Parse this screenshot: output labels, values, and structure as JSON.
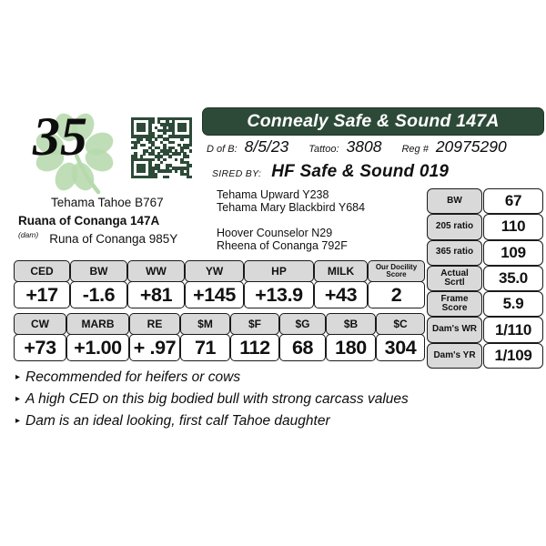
{
  "lot": {
    "number": "35"
  },
  "header": {
    "title": "Connealy Safe & Sound 147A"
  },
  "info": {
    "dob_label": "D of B:",
    "dob": "8/5/23",
    "tattoo_label": "Tattoo:",
    "tattoo": "3808",
    "reg_label": "Reg #",
    "reg": "20975290",
    "sired_label": "SIRED BY:",
    "sire": "HF Safe & Sound 019"
  },
  "pedigree": {
    "sire_of_dam": "Tehama Tahoe B767",
    "dam_name": "Ruana of Conanga 147A",
    "dam_tag": "(dam)",
    "granddam": "Runa of Conanga 985Y",
    "sire_side_1": "Tehama Upward Y238",
    "sire_side_2": "Tehama Mary Blackbird Y684",
    "dam_side_1": "Hoover Counselor N29",
    "dam_side_2": "Rheena of Conanga 792F"
  },
  "stats": {
    "rows": [
      {
        "label": "BW",
        "value": "67"
      },
      {
        "label": "205 ratio",
        "value": "110"
      },
      {
        "label": "365 ratio",
        "value": "109"
      },
      {
        "label": "Actual Scrtl",
        "value": "35.0"
      },
      {
        "label": "Frame Score",
        "value": "5.9"
      },
      {
        "label": "Dam's WR",
        "value": "1/110"
      },
      {
        "label": "Dam's YR",
        "value": "1/109"
      }
    ]
  },
  "epd1": {
    "cols": [
      {
        "label": "CED",
        "value": "+17"
      },
      {
        "label": "BW",
        "value": "-1.6"
      },
      {
        "label": "WW",
        "value": "+81"
      },
      {
        "label": "YW",
        "value": "+145"
      },
      {
        "label": "HP",
        "value": "+13.9"
      },
      {
        "label": "MILK",
        "value": "+43"
      },
      {
        "label": "Our Docility Score",
        "value": "2"
      }
    ]
  },
  "epd2": {
    "cols": [
      {
        "label": "CW",
        "value": "+73"
      },
      {
        "label": "MARB",
        "value": "+1.00"
      },
      {
        "label": "RE",
        "value": "+ .97"
      },
      {
        "label": "$M",
        "value": "71"
      },
      {
        "label": "$F",
        "value": "112"
      },
      {
        "label": "$G",
        "value": "68"
      },
      {
        "label": "$B",
        "value": "180"
      },
      {
        "label": "$C",
        "value": "304"
      }
    ]
  },
  "notes": {
    "bullet_icon": "▸",
    "bullets": [
      "Recommended for heifers or cows",
      "A high CED on this big bodied bull with strong carcass values",
      "Dam is an ideal looking, first calf Tahoe daughter"
    ]
  },
  "colors": {
    "green": "#2d4a38",
    "clover": "#b6daad",
    "cell_gray": "#d9d9d9"
  }
}
